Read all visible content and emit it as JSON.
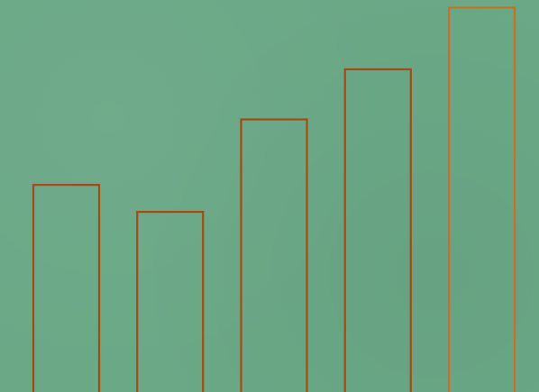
{
  "colors": {
    "background": "#6aa886",
    "bar_fill": "#6aa886",
    "bar_stroke": "#a54a12",
    "bar_stroke_highlight": "#c8702a"
  },
  "chart_data": {
    "type": "bar",
    "categories": [
      "",
      "",
      "",
      "",
      ""
    ],
    "values": [
      54,
      47,
      71,
      84,
      100
    ],
    "ylim": [
      0,
      102
    ],
    "grid": false,
    "legend": "none",
    "title": "",
    "xlabel": "",
    "ylabel": ""
  }
}
